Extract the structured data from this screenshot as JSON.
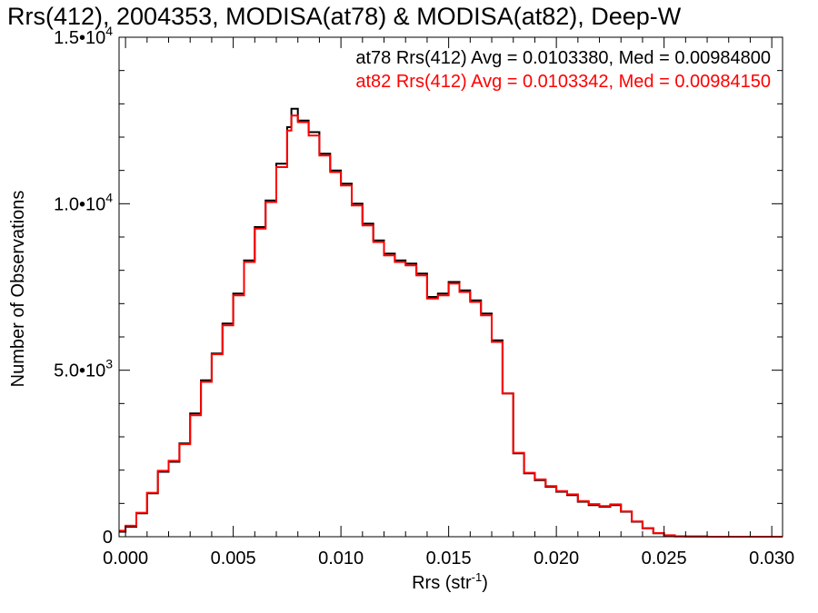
{
  "chart_data": {
    "type": "line",
    "title": "Rrs(412), 2004353, MODISA(at78) & MODISA(at82), Deep-W",
    "xlabel": "Rrs (str",
    "xlabel_unit_exp": "-1",
    "xlabel_close": ")",
    "ylabel": "Number of Observations",
    "xlim": [
      -0.0003,
      0.0305
    ],
    "ylim": [
      0,
      15000
    ],
    "grid": false,
    "step": true,
    "x_ticks": [
      {
        "value": 0.0,
        "label": "0.000"
      },
      {
        "value": 0.005,
        "label": "0.005"
      },
      {
        "value": 0.01,
        "label": "0.010"
      },
      {
        "value": 0.015,
        "label": "0.015"
      },
      {
        "value": 0.02,
        "label": "0.020"
      },
      {
        "value": 0.025,
        "label": "0.025"
      },
      {
        "value": 0.03,
        "label": "0.030"
      }
    ],
    "y_ticks": [
      {
        "value": 0,
        "mant": "0",
        "exp": ""
      },
      {
        "value": 5000,
        "mant": "5.0•10",
        "exp": "3"
      },
      {
        "value": 10000,
        "mant": "1.0•10",
        "exp": "4"
      },
      {
        "value": 15000,
        "mant": "1.5•10",
        "exp": "4"
      }
    ],
    "annotations": [
      {
        "text": "at78 Rrs(412) Avg = 0.0103380, Med = 0.00984800",
        "color": "#000000"
      },
      {
        "text": "at82 Rrs(412) Avg = 0.0103342, Med = 0.00984150",
        "color": "#ff0000"
      }
    ],
    "series": [
      {
        "name": "at78",
        "color": "#000000",
        "x": [
          -0.0003,
          0.0,
          0.0005,
          0.001,
          0.0015,
          0.002,
          0.0025,
          0.003,
          0.0035,
          0.004,
          0.0045,
          0.005,
          0.0055,
          0.006,
          0.0065,
          0.007,
          0.0075,
          0.0077,
          0.008,
          0.0085,
          0.009,
          0.0095,
          0.01,
          0.0105,
          0.011,
          0.0115,
          0.012,
          0.0125,
          0.013,
          0.0135,
          0.014,
          0.0145,
          0.015,
          0.0155,
          0.016,
          0.0165,
          0.017,
          0.0175,
          0.018,
          0.0185,
          0.019,
          0.0195,
          0.02,
          0.0205,
          0.021,
          0.0215,
          0.022,
          0.0225,
          0.023,
          0.0235,
          0.024,
          0.0245,
          0.025,
          0.0255,
          0.026,
          0.027,
          0.028,
          0.029,
          0.0305
        ],
        "y": [
          150,
          300,
          700,
          1300,
          1950,
          2250,
          2800,
          3700,
          4700,
          5500,
          6400,
          7300,
          8300,
          9300,
          10100,
          11200,
          12300,
          12850,
          12500,
          12150,
          11500,
          11000,
          10600,
          10000,
          9400,
          8900,
          8500,
          8300,
          8200,
          7900,
          7200,
          7300,
          7650,
          7400,
          7100,
          6700,
          5900,
          4300,
          2500,
          1900,
          1700,
          1500,
          1350,
          1250,
          1050,
          950,
          900,
          950,
          750,
          450,
          250,
          100,
          40,
          10,
          5,
          0,
          0,
          0,
          0
        ]
      },
      {
        "name": "at82",
        "color": "#ff0000",
        "x": [
          -0.0003,
          0.0,
          0.0005,
          0.001,
          0.0015,
          0.002,
          0.0025,
          0.003,
          0.0035,
          0.004,
          0.0045,
          0.005,
          0.0055,
          0.006,
          0.0065,
          0.007,
          0.0075,
          0.0077,
          0.008,
          0.0085,
          0.009,
          0.0095,
          0.01,
          0.0105,
          0.011,
          0.0115,
          0.012,
          0.0125,
          0.013,
          0.0135,
          0.014,
          0.0145,
          0.015,
          0.0155,
          0.016,
          0.0165,
          0.017,
          0.0175,
          0.018,
          0.0185,
          0.019,
          0.0195,
          0.02,
          0.0205,
          0.021,
          0.0215,
          0.022,
          0.0225,
          0.023,
          0.0235,
          0.024,
          0.0245,
          0.025,
          0.0255,
          0.026,
          0.027,
          0.028,
          0.029,
          0.0305
        ],
        "y": [
          180,
          330,
          720,
          1320,
          1980,
          2280,
          2780,
          3650,
          4650,
          5480,
          6350,
          7250,
          8250,
          9250,
          10050,
          11100,
          12200,
          12650,
          12450,
          12050,
          11450,
          10950,
          10550,
          9950,
          9350,
          8850,
          8450,
          8250,
          8150,
          7850,
          7150,
          7250,
          7600,
          7350,
          7050,
          6650,
          5850,
          4300,
          2520,
          1920,
          1720,
          1520,
          1370,
          1270,
          1070,
          980,
          920,
          970,
          760,
          460,
          260,
          110,
          45,
          12,
          5,
          0,
          0,
          0,
          0
        ]
      }
    ]
  }
}
